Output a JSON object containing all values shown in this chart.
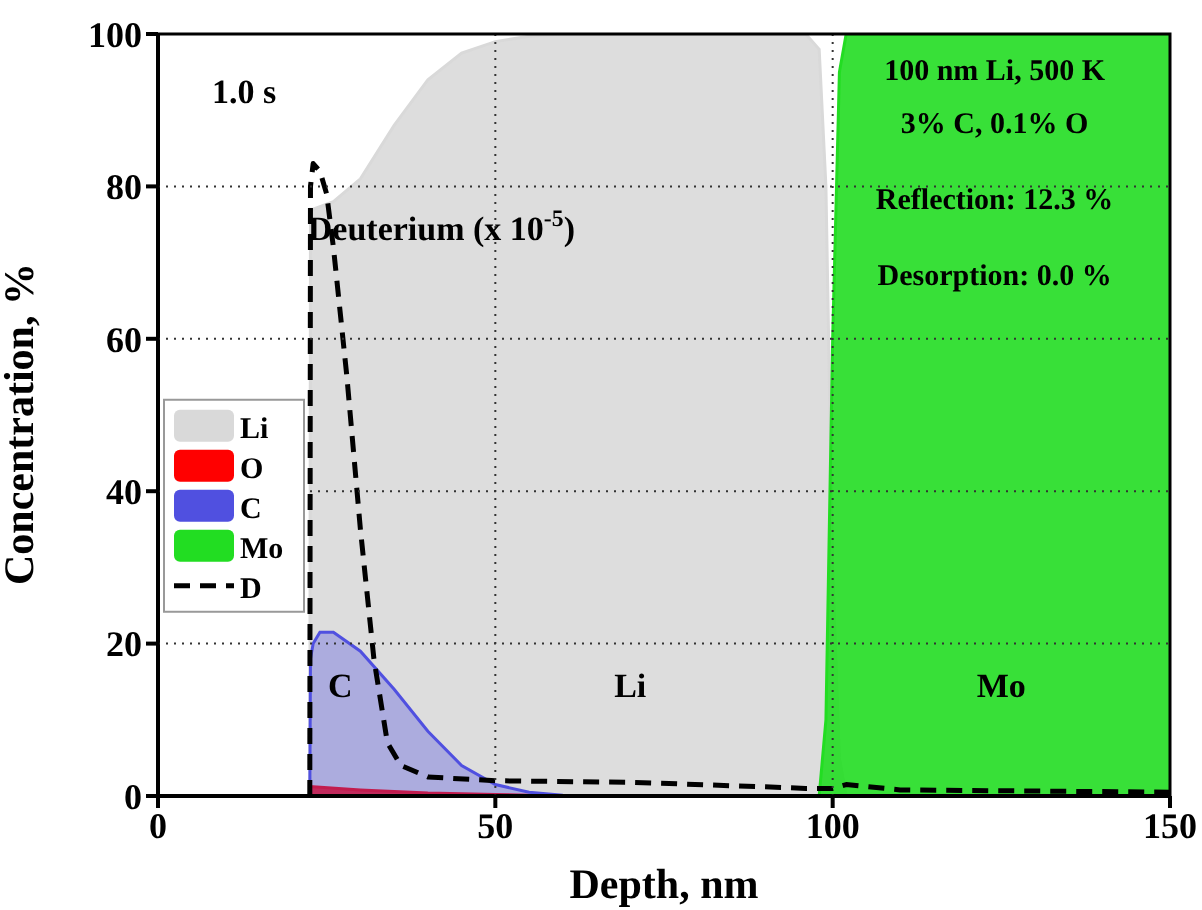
{
  "chart_data": {
    "type": "area",
    "xlabel": "Depth, nm",
    "ylabel": "Concentration, %",
    "xlim": [
      0,
      150
    ],
    "xticks": [
      0,
      50,
      100,
      150
    ],
    "ylim": [
      0,
      100
    ],
    "yticks": [
      0,
      20,
      40,
      60,
      80,
      100
    ],
    "grid": true,
    "legend": "left",
    "series": [
      {
        "name": "Li",
        "color": "#d9d9d9",
        "x": [
          22.5,
          22.6,
          23,
          26,
          30,
          35,
          40,
          45,
          50,
          55,
          60,
          96,
          98,
          99,
          100,
          101,
          102,
          150
        ],
        "values": [
          0,
          77,
          77,
          78,
          81,
          88,
          94,
          97.5,
          99,
          99.7,
          100,
          100,
          98,
          80,
          30,
          5,
          0,
          0
        ]
      },
      {
        "name": "O",
        "color": "#ff0000",
        "x": [
          22.5,
          22.6,
          23,
          30,
          40,
          50,
          60,
          150
        ],
        "values": [
          0,
          1.2,
          1.2,
          0.8,
          0.4,
          0.2,
          0,
          0
        ]
      },
      {
        "name": "C",
        "color": "#5050e0",
        "x": [
          22.5,
          22.6,
          23,
          24,
          26,
          30,
          35,
          40,
          45,
          50,
          55,
          60,
          65,
          150
        ],
        "values": [
          0,
          18,
          20,
          21.5,
          21.5,
          19,
          14,
          8.5,
          4,
          1.5,
          0.5,
          0.1,
          0,
          0
        ]
      },
      {
        "name": "Mo",
        "color": "#22dd22",
        "x": [
          0,
          98,
          99,
          100,
          101,
          102,
          150
        ],
        "values": [
          0,
          0,
          10,
          60,
          95,
          100,
          100
        ]
      },
      {
        "name": "D",
        "type": "line",
        "color": "#000000",
        "line_style": "dashed",
        "x": [
          22.5,
          22.6,
          23,
          24,
          25,
          26,
          28,
          30,
          32,
          34,
          36,
          40,
          50,
          70,
          90,
          96,
          100,
          102,
          110,
          150
        ],
        "values": [
          0,
          80,
          83,
          82,
          79,
          72,
          55,
          35,
          18,
          7,
          4,
          2.5,
          2,
          1.8,
          1.2,
          1,
          1,
          1.5,
          0.8,
          0.5
        ]
      }
    ],
    "annotations": [
      "1.0 s",
      "Deuterium (x 10$^{-5}$)",
      "100 nm Li, 500 K",
      "3% C, 0.1% O",
      "Reflection:  12.3 %",
      "Desorption:   0.0 %",
      "C",
      "Li",
      "Mo"
    ]
  }
}
